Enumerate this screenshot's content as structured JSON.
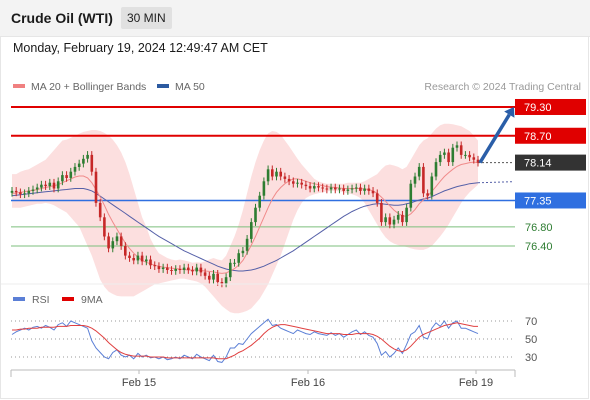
{
  "header": {
    "title": "Crude Oil (WTI)",
    "timeframe": "30 MIN",
    "datetime": "Monday, February 19, 2024 12:49:47 AM CET"
  },
  "legend": {
    "items": [
      {
        "label": "MA 20 + Bollinger Bands",
        "color": "#f08080"
      },
      {
        "label": "MA 50",
        "color": "#2c5aa0"
      }
    ],
    "credit": "Research © 2024 Trading Central"
  },
  "colors": {
    "up": "#2e7d32",
    "down": "#c62828",
    "resistance": "#e00000",
    "pivot": "#2f6fe0",
    "support": "#7cbf7c",
    "last": "#333333",
    "band_fill": "#fbd9d9",
    "ma20": "#f08a8a",
    "ma50": "#5560a8",
    "arrow": "#2a5ea8"
  },
  "chart_data": [
    {
      "type": "candlestick",
      "title": "Crude Oil (WTI)",
      "timeframe": "30 MIN",
      "ylim": [
        75.9,
        79.55
      ],
      "x_ticks": [
        "Feb 15",
        "Feb 16",
        "Feb 19"
      ],
      "series_names": [
        "MA 20 + Bollinger Bands",
        "MA 50"
      ],
      "levels": [
        {
          "label": "79.30",
          "value": 79.3,
          "kind": "resistance"
        },
        {
          "label": "78.70",
          "value": 78.7,
          "kind": "resistance"
        },
        {
          "label": "78.14",
          "value": 78.14,
          "kind": "last"
        },
        {
          "label": "77.35",
          "value": 77.35,
          "kind": "pivot"
        },
        {
          "label": "76.80",
          "value": 76.8,
          "kind": "support"
        },
        {
          "label": "76.40",
          "value": 76.4,
          "kind": "support"
        }
      ],
      "close": [
        77.55,
        77.52,
        77.48,
        77.5,
        77.55,
        77.58,
        77.62,
        77.68,
        77.65,
        77.72,
        77.6,
        77.75,
        77.88,
        77.82,
        77.95,
        78.05,
        78.12,
        78.22,
        78.3,
        77.95,
        77.3,
        77.0,
        76.6,
        76.35,
        76.5,
        76.6,
        76.4,
        76.2,
        76.15,
        76.1,
        76.2,
        76.08,
        76.12,
        76.0,
        75.98,
        75.92,
        75.95,
        75.9,
        75.88,
        75.92,
        75.9,
        75.95,
        75.9,
        75.87,
        75.95,
        75.85,
        75.78,
        75.7,
        75.82,
        75.65,
        75.62,
        75.75,
        76.05,
        76.05,
        76.25,
        76.3,
        76.55,
        76.9,
        77.2,
        77.45,
        77.75,
        78.0,
        77.85,
        77.95,
        77.85,
        77.8,
        77.75,
        77.7,
        77.72,
        77.68,
        77.65,
        77.6,
        77.65,
        77.62,
        77.6,
        77.58,
        77.62,
        77.58,
        77.6,
        77.55,
        77.58,
        77.6,
        77.62,
        77.55,
        77.6,
        77.55,
        77.5,
        77.3,
        76.9,
        77.0,
        76.85,
        76.95,
        77.05,
        76.9,
        77.2,
        77.7,
        77.85,
        78.05,
        77.5,
        77.45,
        77.85,
        78.15,
        78.3,
        78.35,
        78.15,
        78.45,
        78.5,
        78.3,
        78.3,
        78.25,
        78.2,
        78.14
      ],
      "ma20": [
        77.5,
        77.5,
        77.52,
        77.53,
        77.55,
        77.56,
        77.58,
        77.6,
        77.62,
        77.64,
        77.66,
        77.68,
        77.72,
        77.76,
        77.8,
        77.84,
        77.86,
        77.86,
        77.82,
        77.72,
        77.58,
        77.42,
        77.25,
        77.06,
        76.9,
        76.75,
        76.6,
        76.46,
        76.35,
        76.25,
        76.17,
        76.1,
        76.06,
        76.03,
        76.0,
        75.98,
        75.96,
        75.95,
        75.94,
        75.93,
        75.92,
        75.91,
        75.9,
        75.9,
        75.9,
        75.89,
        75.88,
        75.87,
        75.86,
        75.84,
        75.83,
        75.84,
        75.88,
        75.93,
        76.0,
        76.1,
        76.25,
        76.42,
        76.6,
        76.8,
        77.0,
        77.2,
        77.38,
        77.52,
        77.62,
        77.7,
        77.76,
        77.8,
        77.8,
        77.78,
        77.75,
        77.72,
        77.7,
        77.68,
        77.66,
        77.64,
        77.63,
        77.62,
        77.61,
        77.6,
        77.6,
        77.6,
        77.6,
        77.6,
        77.59,
        77.58,
        77.55,
        77.5,
        77.42,
        77.33,
        77.24,
        77.15,
        77.08,
        77.03,
        77.02,
        77.07,
        77.16,
        77.28,
        77.36,
        77.44,
        77.54,
        77.64,
        77.75,
        77.85,
        77.93,
        78.0,
        78.06,
        78.1,
        78.12,
        78.14,
        78.15,
        78.14
      ],
      "bb_upper": [
        77.9,
        77.9,
        77.95,
        77.98,
        78.0,
        78.05,
        78.1,
        78.15,
        78.2,
        78.3,
        78.4,
        78.5,
        78.6,
        78.62,
        78.66,
        78.7,
        78.74,
        78.78,
        78.8,
        78.82,
        78.82,
        78.8,
        78.76,
        78.7,
        78.62,
        78.5,
        78.35,
        78.15,
        77.9,
        77.6,
        77.3,
        77.0,
        76.8,
        76.55,
        76.38,
        76.25,
        76.2,
        76.15,
        76.12,
        76.1,
        76.12,
        76.1,
        76.08,
        76.05,
        76.06,
        76.05,
        76.08,
        76.12,
        76.15,
        76.12,
        76.1,
        76.2,
        76.4,
        76.6,
        76.85,
        77.15,
        77.5,
        77.85,
        78.15,
        78.4,
        78.6,
        78.75,
        78.8,
        78.78,
        78.72,
        78.6,
        78.48,
        78.35,
        78.22,
        78.1,
        78.0,
        77.9,
        77.8,
        77.75,
        77.72,
        77.7,
        77.7,
        77.7,
        77.7,
        77.7,
        77.72,
        77.72,
        77.72,
        77.72,
        77.75,
        77.8,
        77.85,
        77.9,
        78.0,
        78.08,
        78.1,
        78.08,
        78.05,
        78.0,
        78.05,
        78.2,
        78.35,
        78.5,
        78.6,
        78.65,
        78.75,
        78.85,
        78.92,
        78.95,
        78.95,
        78.94,
        78.92,
        78.9,
        78.85,
        78.8,
        78.7,
        78.6
      ],
      "bb_lower": [
        77.2,
        77.2,
        77.2,
        77.22,
        77.24,
        77.26,
        77.28,
        77.28,
        77.3,
        77.28,
        77.25,
        77.2,
        77.15,
        77.1,
        77.0,
        76.9,
        76.8,
        76.6,
        76.4,
        76.2,
        75.95,
        75.7,
        75.55,
        75.45,
        75.4,
        75.36,
        75.35,
        75.35,
        75.35,
        75.35,
        75.4,
        75.45,
        75.5,
        75.55,
        75.6,
        75.62,
        75.64,
        75.66,
        75.68,
        75.7,
        75.72,
        75.72,
        75.7,
        75.68,
        75.66,
        75.62,
        75.55,
        75.45,
        75.35,
        75.25,
        75.15,
        75.08,
        75.02,
        75.0,
        75.0,
        75.02,
        75.05,
        75.1,
        75.2,
        75.3,
        75.45,
        75.6,
        75.8,
        76.0,
        76.2,
        76.45,
        76.7,
        76.95,
        77.15,
        77.3,
        77.4,
        77.45,
        77.48,
        77.5,
        77.52,
        77.54,
        77.55,
        77.55,
        77.54,
        77.52,
        77.5,
        77.48,
        77.45,
        77.4,
        77.3,
        77.15,
        77.0,
        76.85,
        76.7,
        76.58,
        76.5,
        76.45,
        76.42,
        76.4,
        76.38,
        76.35,
        76.33,
        76.32,
        76.32,
        76.35,
        76.4,
        76.5,
        76.6,
        76.72,
        76.85,
        77.0,
        77.15,
        77.3,
        77.42,
        77.52,
        77.6,
        77.68
      ],
      "ma50": [
        77.45,
        77.46,
        77.47,
        77.48,
        77.49,
        77.5,
        77.51,
        77.52,
        77.53,
        77.54,
        77.55,
        77.56,
        77.57,
        77.58,
        77.59,
        77.6,
        77.6,
        77.6,
        77.58,
        77.55,
        77.5,
        77.44,
        77.38,
        77.32,
        77.26,
        77.2,
        77.14,
        77.08,
        77.02,
        76.96,
        76.9,
        76.84,
        76.78,
        76.72,
        76.66,
        76.6,
        76.55,
        76.5,
        76.45,
        76.4,
        76.35,
        76.3,
        76.26,
        76.22,
        76.18,
        76.14,
        76.1,
        76.06,
        76.02,
        75.98,
        75.95,
        75.92,
        75.9,
        75.89,
        75.88,
        75.88,
        75.89,
        75.9,
        75.92,
        75.95,
        75.98,
        76.02,
        76.06,
        76.1,
        76.15,
        76.2,
        76.25,
        76.3,
        76.36,
        76.42,
        76.48,
        76.54,
        76.6,
        76.66,
        76.72,
        76.78,
        76.84,
        76.9,
        76.96,
        77.02,
        77.07,
        77.12,
        77.16,
        77.2,
        77.23,
        77.25,
        77.27,
        77.28,
        77.28,
        77.27,
        77.26,
        77.25,
        77.25,
        77.26,
        77.28,
        77.3,
        77.33,
        77.36,
        77.38,
        77.4,
        77.43,
        77.47,
        77.51,
        77.55,
        77.58,
        77.61,
        77.64,
        77.66,
        77.68,
        77.7,
        77.71,
        77.72
      ],
      "projection": {
        "from": 78.14,
        "to": 79.3
      }
    },
    {
      "type": "line",
      "title": "RSI",
      "series_names": [
        "RSI",
        "9MA"
      ],
      "ylim": [
        20,
        80
      ],
      "y_ticks": [
        70,
        50,
        30
      ],
      "rsi": [
        55,
        58,
        60,
        62,
        60,
        63,
        64,
        62,
        65,
        63,
        60,
        66,
        68,
        64,
        70,
        68,
        66,
        64,
        62,
        48,
        40,
        35,
        30,
        28,
        35,
        38,
        32,
        30,
        32,
        28,
        34,
        30,
        32,
        29,
        30,
        28,
        30,
        27,
        28,
        30,
        28,
        32,
        30,
        28,
        33,
        30,
        28,
        26,
        32,
        25,
        24,
        30,
        40,
        40,
        45,
        44,
        50,
        56,
        60,
        64,
        68,
        72,
        65,
        66,
        62,
        60,
        58,
        56,
        60,
        58,
        56,
        55,
        58,
        56,
        55,
        54,
        57,
        54,
        56,
        52,
        55,
        58,
        60,
        55,
        58,
        54,
        52,
        45,
        32,
        36,
        30,
        34,
        40,
        34,
        44,
        55,
        58,
        65,
        52,
        50,
        62,
        68,
        64,
        70,
        62,
        68,
        70,
        62,
        62,
        60,
        58,
        56
      ],
      "ma": [
        60,
        60,
        61,
        61,
        62,
        62,
        62,
        63,
        63,
        63,
        63,
        64,
        64,
        64,
        65,
        65,
        65,
        65,
        64,
        62,
        59,
        55,
        51,
        46,
        42,
        38,
        35,
        33,
        32,
        31,
        31,
        31,
        31,
        30,
        30,
        30,
        30,
        29,
        29,
        29,
        29,
        29,
        29,
        29,
        29,
        29,
        29,
        29,
        29,
        28,
        28,
        28,
        30,
        32,
        35,
        37,
        40,
        43,
        47,
        51,
        56,
        60,
        63,
        65,
        66,
        66,
        65,
        64,
        63,
        62,
        61,
        60,
        59,
        58,
        57,
        56,
        56,
        56,
        56,
        55,
        55,
        55,
        56,
        56,
        56,
        56,
        55,
        53,
        50,
        46,
        42,
        39,
        37,
        36,
        38,
        42,
        47,
        52,
        55,
        57,
        59,
        61,
        63,
        65,
        66,
        67,
        68,
        67,
        66,
        65,
        64,
        64
      ]
    }
  ]
}
